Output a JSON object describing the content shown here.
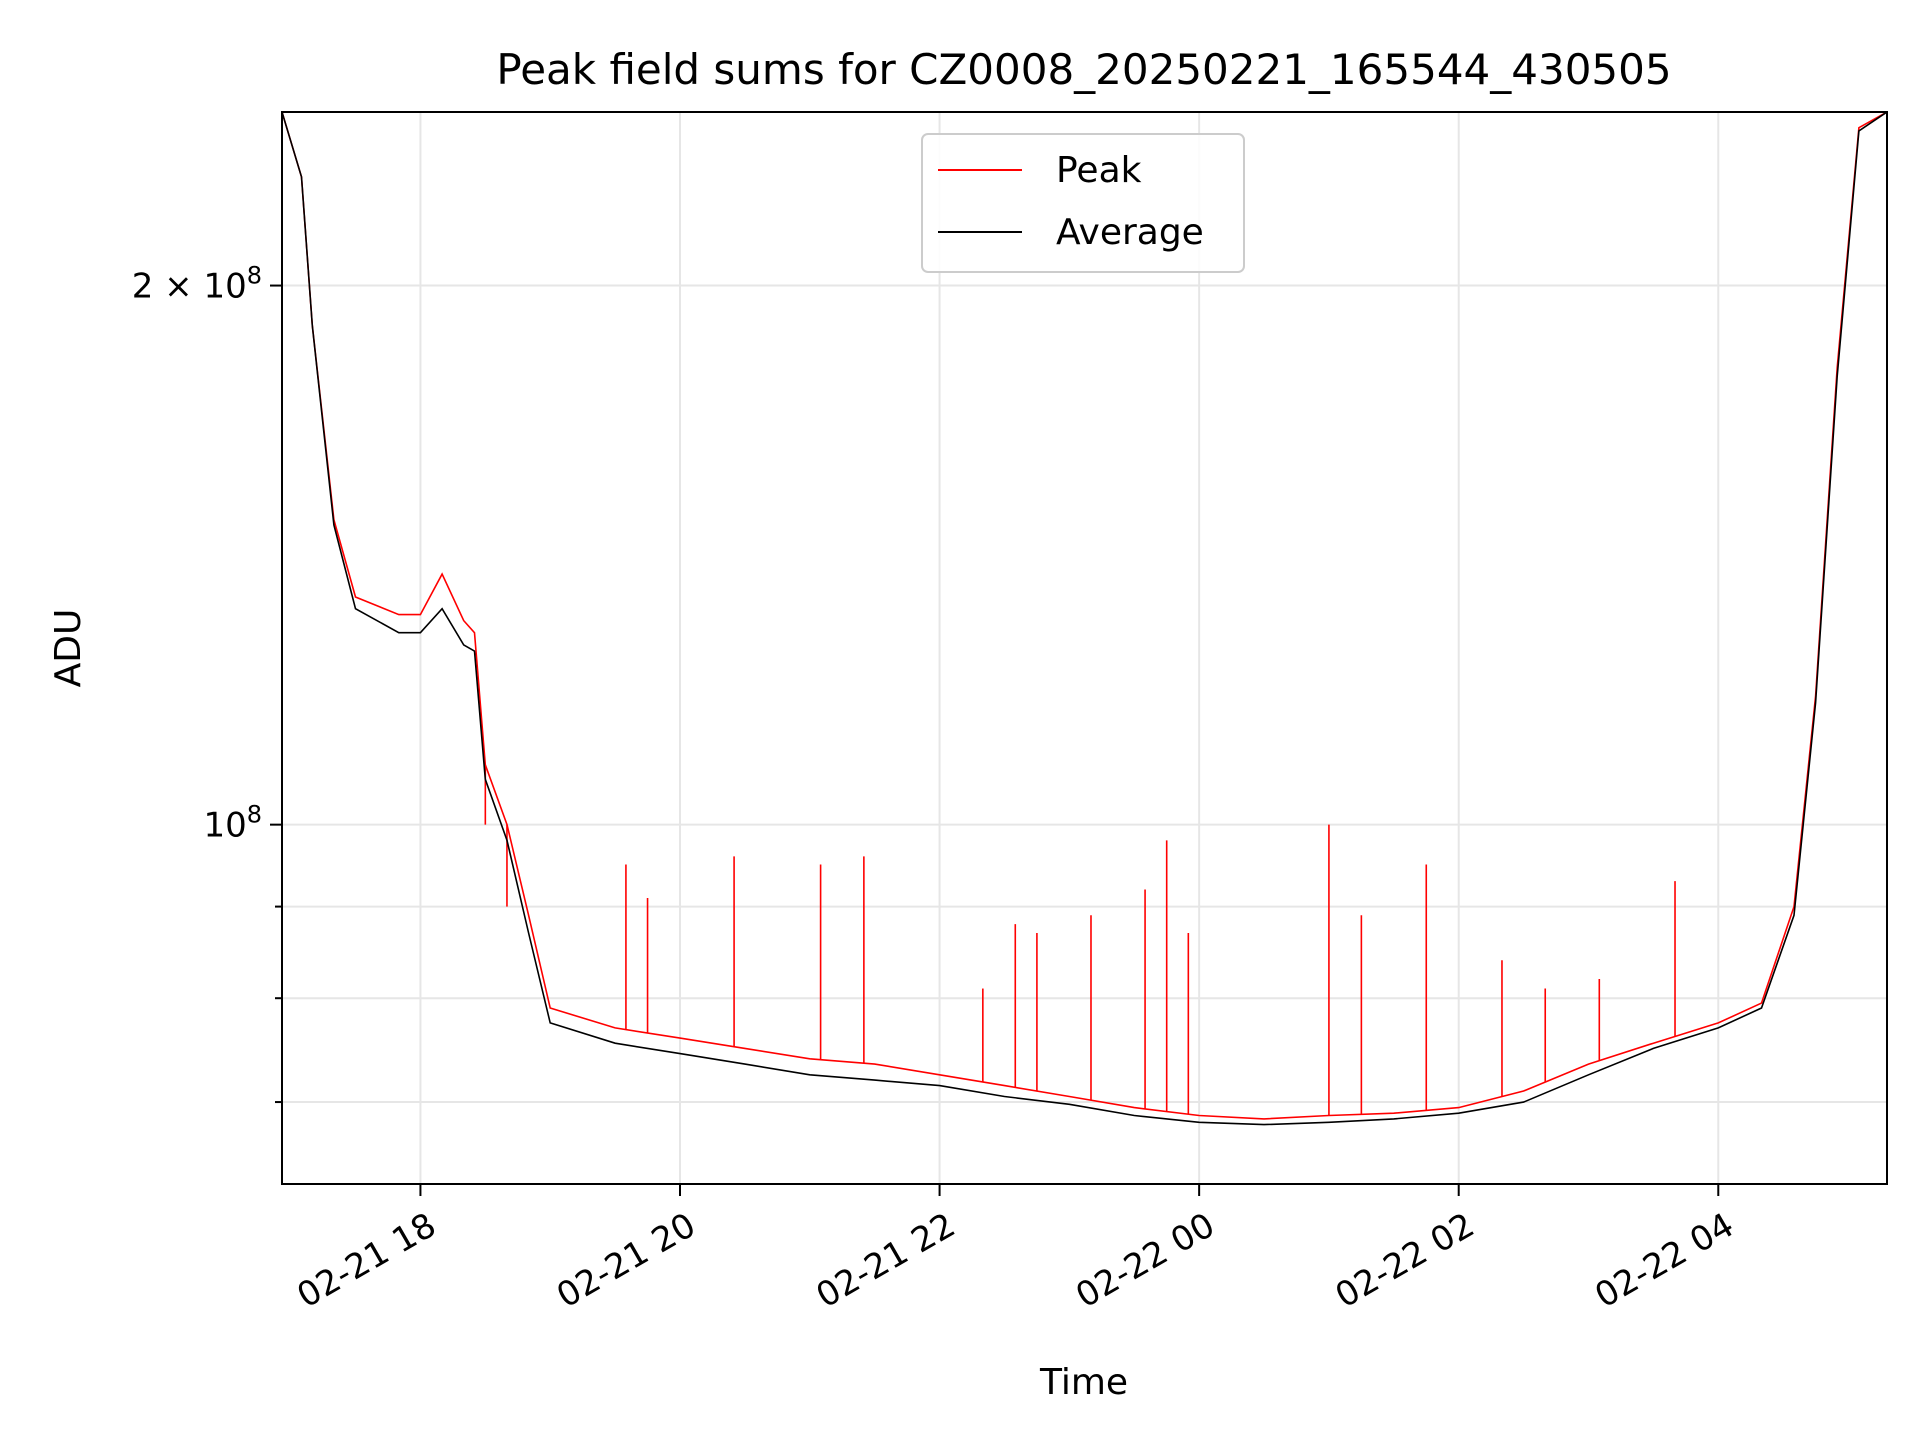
{
  "chart_data": {
    "type": "line",
    "title": "Peak field sums for CZ0008_20250221_165544_430505",
    "xlabel": "Time",
    "ylabel": "ADU",
    "yscale": "log",
    "grid": true,
    "legend_position": "top-center",
    "x_ticks": [
      "02-21 18",
      "02-21 20",
      "02-21 22",
      "02-22 00",
      "02-22 02",
      "02-22 04"
    ],
    "y_ticks": [
      {
        "value": 200000000,
        "mantissa": "2",
        "exponent": "8"
      },
      {
        "value": 100000000,
        "mantissa": "",
        "exponent": "8"
      }
    ],
    "xlim": [
      "2025-02-21T16:56",
      "2025-02-22T05:18"
    ],
    "ylim": [
      63000000,
      250000000
    ],
    "colors": {
      "peak": "#ff0000",
      "average": "#000000"
    },
    "series": [
      {
        "name": "Peak",
        "color": "#ff0000",
        "points": [
          [
            "2025-02-21T16:56",
            250000000
          ],
          [
            "2025-02-21T17:05",
            230000000
          ],
          [
            "2025-02-21T17:10",
            190000000
          ],
          [
            "2025-02-21T17:20",
            148000000
          ],
          [
            "2025-02-21T17:30",
            134000000
          ],
          [
            "2025-02-21T17:50",
            131000000
          ],
          [
            "2025-02-21T18:00",
            131000000
          ],
          [
            "2025-02-21T18:10",
            138000000
          ],
          [
            "2025-02-21T18:20",
            130000000
          ],
          [
            "2025-02-21T18:25",
            128000000
          ],
          [
            "2025-02-21T18:30",
            108000000
          ],
          [
            "2025-02-21T18:40",
            100000000
          ],
          [
            "2025-02-21T18:50",
            89000000
          ],
          [
            "2025-02-21T19:00",
            79000000
          ],
          [
            "2025-02-21T19:30",
            77000000
          ],
          [
            "2025-02-21T20:00",
            76000000
          ],
          [
            "2025-02-21T20:30",
            75000000
          ],
          [
            "2025-02-21T21:00",
            74000000
          ],
          [
            "2025-02-21T21:30",
            73500000
          ],
          [
            "2025-02-21T22:00",
            72500000
          ],
          [
            "2025-02-21T22:30",
            71500000
          ],
          [
            "2025-02-21T23:00",
            70500000
          ],
          [
            "2025-02-21T23:30",
            69500000
          ],
          [
            "2025-02-22T00:00",
            68800000
          ],
          [
            "2025-02-22T00:30",
            68500000
          ],
          [
            "2025-02-22T01:00",
            68800000
          ],
          [
            "2025-02-22T01:30",
            69000000
          ],
          [
            "2025-02-22T02:00",
            69500000
          ],
          [
            "2025-02-22T02:30",
            71000000
          ],
          [
            "2025-02-22T03:00",
            73500000
          ],
          [
            "2025-02-22T03:30",
            75500000
          ],
          [
            "2025-02-22T04:00",
            77500000
          ],
          [
            "2025-02-22T04:20",
            79500000
          ],
          [
            "2025-02-22T04:35",
            90000000
          ],
          [
            "2025-02-22T04:45",
            118000000
          ],
          [
            "2025-02-22T04:55",
            180000000
          ],
          [
            "2025-02-22T05:05",
            245000000
          ],
          [
            "2025-02-22T05:18",
            250000000
          ]
        ],
        "spikes": [
          [
            "2025-02-21T18:30",
            100000000
          ],
          [
            "2025-02-21T18:40",
            90000000
          ],
          [
            "2025-02-21T19:35",
            95000000
          ],
          [
            "2025-02-21T19:45",
            91000000
          ],
          [
            "2025-02-21T20:25",
            96000000
          ],
          [
            "2025-02-21T21:05",
            95000000
          ],
          [
            "2025-02-21T21:25",
            96000000
          ],
          [
            "2025-02-21T22:20",
            81000000
          ],
          [
            "2025-02-21T22:35",
            88000000
          ],
          [
            "2025-02-21T22:45",
            87000000
          ],
          [
            "2025-02-21T23:10",
            89000000
          ],
          [
            "2025-02-21T23:35",
            92000000
          ],
          [
            "2025-02-21T23:45",
            98000000
          ],
          [
            "2025-02-21T23:55",
            87000000
          ],
          [
            "2025-02-22T01:00",
            100000000
          ],
          [
            "2025-02-22T01:15",
            89000000
          ],
          [
            "2025-02-22T01:45",
            95000000
          ],
          [
            "2025-02-22T02:20",
            84000000
          ],
          [
            "2025-02-22T02:40",
            81000000
          ],
          [
            "2025-02-22T03:05",
            82000000
          ],
          [
            "2025-02-22T03:40",
            93000000
          ]
        ]
      },
      {
        "name": "Average",
        "color": "#000000",
        "points": [
          [
            "2025-02-21T16:56",
            250000000
          ],
          [
            "2025-02-21T17:05",
            230000000
          ],
          [
            "2025-02-21T17:10",
            190000000
          ],
          [
            "2025-02-21T17:20",
            147000000
          ],
          [
            "2025-02-21T17:30",
            132000000
          ],
          [
            "2025-02-21T17:50",
            128000000
          ],
          [
            "2025-02-21T18:00",
            128000000
          ],
          [
            "2025-02-21T18:10",
            132000000
          ],
          [
            "2025-02-21T18:20",
            126000000
          ],
          [
            "2025-02-21T18:25",
            125000000
          ],
          [
            "2025-02-21T18:30",
            106000000
          ],
          [
            "2025-02-21T18:40",
            98000000
          ],
          [
            "2025-02-21T18:50",
            87000000
          ],
          [
            "2025-02-21T19:00",
            77500000
          ],
          [
            "2025-02-21T19:30",
            75500000
          ],
          [
            "2025-02-21T20:00",
            74500000
          ],
          [
            "2025-02-21T20:30",
            73500000
          ],
          [
            "2025-02-21T21:00",
            72500000
          ],
          [
            "2025-02-21T21:30",
            72000000
          ],
          [
            "2025-02-21T22:00",
            71500000
          ],
          [
            "2025-02-21T22:30",
            70500000
          ],
          [
            "2025-02-21T23:00",
            69800000
          ],
          [
            "2025-02-21T23:30",
            68800000
          ],
          [
            "2025-02-22T00:00",
            68200000
          ],
          [
            "2025-02-22T00:30",
            68000000
          ],
          [
            "2025-02-22T01:00",
            68200000
          ],
          [
            "2025-02-22T01:30",
            68500000
          ],
          [
            "2025-02-22T02:00",
            69000000
          ],
          [
            "2025-02-22T02:30",
            70000000
          ],
          [
            "2025-02-22T03:00",
            72500000
          ],
          [
            "2025-02-22T03:30",
            75000000
          ],
          [
            "2025-02-22T04:00",
            77000000
          ],
          [
            "2025-02-22T04:20",
            79000000
          ],
          [
            "2025-02-22T04:35",
            89000000
          ],
          [
            "2025-02-22T04:45",
            117000000
          ],
          [
            "2025-02-22T04:55",
            178000000
          ],
          [
            "2025-02-22T05:05",
            244000000
          ],
          [
            "2025-02-22T05:18",
            250000000
          ]
        ]
      }
    ]
  }
}
